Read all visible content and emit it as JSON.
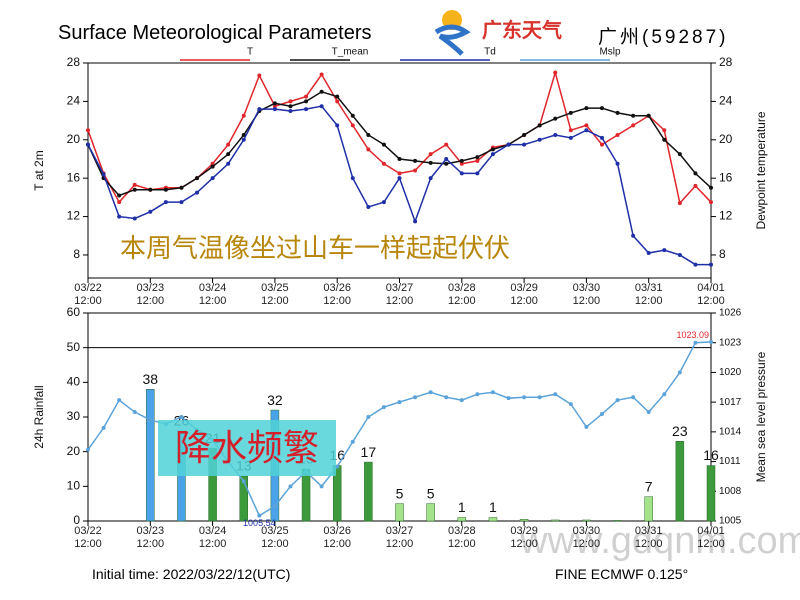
{
  "header": {
    "title": "Surface Meteorological Parameters",
    "logo_text": "广东天气",
    "station": "广州(59287)"
  },
  "chart_data": [
    {
      "type": "line",
      "x": [
        0,
        6,
        12,
        18,
        24,
        30,
        36,
        42,
        48,
        54,
        60,
        66,
        72,
        78,
        84,
        90,
        96,
        102,
        108,
        114,
        120,
        126,
        132,
        138,
        144,
        150,
        156,
        162,
        168,
        174,
        180,
        186,
        192,
        198,
        204,
        210,
        216,
        222,
        228,
        234,
        240
      ],
      "xlim": [
        0,
        240
      ],
      "xticks": [
        {
          "value": 0,
          "label": "03/22 12:00"
        },
        {
          "value": 24,
          "label": "03/23 12:00"
        },
        {
          "value": 48,
          "label": "03/24 12:00"
        },
        {
          "value": 72,
          "label": "03/25 12:00"
        },
        {
          "value": 96,
          "label": "03/26 12:00"
        },
        {
          "value": 120,
          "label": "03/27 12:00"
        },
        {
          "value": 144,
          "label": "03/28 12:00"
        },
        {
          "value": 168,
          "label": "03/29 12:00"
        },
        {
          "value": 192,
          "label": "03/30 12:00"
        },
        {
          "value": 216,
          "label": "03/31 12:00"
        },
        {
          "value": 240,
          "label": "04/01 12:00"
        }
      ],
      "y_label": "T at 2m",
      "ylim": [
        5.6,
        28
      ],
      "yticks": [
        8,
        12,
        16,
        20,
        24,
        28
      ],
      "y2_label": "Dewpoint temperature",
      "y2lim": [
        5.6,
        28
      ],
      "y2ticks": [
        8,
        12,
        16,
        20,
        24,
        28
      ],
      "series": [
        {
          "name": "T",
          "color": "#e0262b",
          "values": [
            21,
            16.5,
            13.5,
            15.3,
            14.8,
            15,
            15,
            16,
            17.5,
            19.5,
            22.5,
            26.7,
            23.5,
            24,
            24.5,
            26.8,
            24,
            21.5,
            19,
            17.5,
            16.5,
            16.8,
            18.5,
            19.5,
            17.5,
            17.8,
            19.2,
            19.5,
            20.5,
            21.5,
            27,
            21,
            21.5,
            19.5,
            20.5,
            21.5,
            22.5,
            21,
            13.4,
            15.2,
            13.5
          ]
        },
        {
          "name": "T_mean",
          "color": "#111111",
          "values": [
            19.5,
            16,
            14.2,
            14.8,
            14.8,
            14.8,
            15,
            16,
            17.2,
            18.5,
            20.5,
            23,
            23.8,
            23.5,
            24,
            25,
            24.5,
            22.5,
            20.5,
            19.5,
            18,
            17.8,
            17.6,
            17.5,
            17.8,
            18.2,
            19,
            19.5,
            20.5,
            21.5,
            22.2,
            22.8,
            23.3,
            23.3,
            22.8,
            22.5,
            22.5,
            20,
            18.5,
            16.5,
            15
          ]
        },
        {
          "name": "Td",
          "color": "#1f2fa8",
          "axis": "y2",
          "values": [
            19.5,
            16.4,
            12,
            11.8,
            12.5,
            13.5,
            13.5,
            14.5,
            16,
            17.5,
            20,
            23.2,
            23.2,
            23,
            23.2,
            23.5,
            21.5,
            16,
            13,
            13.5,
            16,
            11.5,
            16,
            18,
            16.5,
            16.5,
            18.5,
            19.5,
            19.5,
            20,
            20.5,
            20.2,
            21,
            20.2,
            17.5,
            10,
            8.2,
            8.5,
            8,
            7,
            7
          ]
        }
      ],
      "annotation": "本周气温像坐过山车一样起起伏伏"
    },
    {
      "type": "bar",
      "x": [
        24,
        36,
        48,
        60,
        72,
        84,
        96,
        108,
        120,
        132,
        144,
        156,
        168,
        180,
        192,
        204,
        216,
        228,
        240
      ],
      "values": [
        38,
        26,
        21,
        13,
        32,
        15,
        16,
        17,
        5,
        5,
        1,
        1,
        0.5,
        0.3,
        0.3,
        0.2,
        7,
        23,
        16
      ],
      "colors": [
        "#4aa3e8",
        "#4aa3e8",
        "#3c9a3c",
        "#3c9a3c",
        "#4aa3e8",
        "#3c9a3c",
        "#3c9a3c",
        "#3c9a3c",
        "#a4e38a",
        "#a4e38a",
        "#a4e38a",
        "#a4e38a",
        "#a4e38a",
        "#a4e38a",
        "#a4e38a",
        "#a4e38a",
        "#a4e38a",
        "#3c9a3c",
        "#3c9a3c"
      ],
      "xlim": [
        0,
        240
      ],
      "xticks": [
        {
          "value": 0,
          "label": "03/22 12:00"
        },
        {
          "value": 24,
          "label": "03/23 12:00"
        },
        {
          "value": 48,
          "label": "03/24 12:00"
        },
        {
          "value": 72,
          "label": "03/25 12:00"
        },
        {
          "value": 96,
          "label": "03/26 12:00"
        },
        {
          "value": 120,
          "label": "03/27 12:00"
        },
        {
          "value": 144,
          "label": "03/28 12:00"
        },
        {
          "value": 168,
          "label": "03/29 12:00"
        },
        {
          "value": 192,
          "label": "03/30 12:00"
        },
        {
          "value": 216,
          "label": "03/31 12:00"
        },
        {
          "value": 240,
          "label": "04/01 12:00"
        }
      ],
      "y_label": "24h Rainfall",
      "ylim": [
        0,
        60
      ],
      "yticks": [
        0,
        10,
        20,
        30,
        40,
        50,
        60
      ],
      "y2_label": "Mean sea level pressure",
      "y2lim": [
        1005,
        1026
      ],
      "y2ticks": [
        1005,
        1008,
        1011,
        1014,
        1017,
        1020,
        1023,
        1026
      ],
      "series": [
        {
          "name": "Mslp",
          "color": "#5ba3d9",
          "axis": "y2",
          "x": [
            0,
            6,
            12,
            18,
            24,
            30,
            36,
            42,
            48,
            54,
            60,
            66,
            72,
            78,
            84,
            90,
            96,
            102,
            108,
            114,
            120,
            126,
            132,
            138,
            144,
            150,
            156,
            162,
            168,
            174,
            180,
            186,
            192,
            198,
            204,
            210,
            216,
            222,
            228,
            234,
            240
          ],
          "values": [
            1012.2,
            1014.4,
            1017.2,
            1016,
            1015.2,
            1014.8,
            1015.5,
            1014.2,
            1013.2,
            1011,
            1009,
            1005.54,
            1006.5,
            1008.5,
            1010,
            1008.5,
            1010.5,
            1013,
            1015.5,
            1016.5,
            1017,
            1017.5,
            1018,
            1017.5,
            1017.2,
            1017.8,
            1018,
            1017.4,
            1017.5,
            1017.5,
            1017.8,
            1016.8,
            1014.5,
            1015.8,
            1017.2,
            1017.5,
            1016,
            1017.8,
            1020,
            1023,
            1023.09
          ]
        }
      ],
      "annotation": "降水频繁"
    }
  ],
  "footer": {
    "initial_time": "Initial time: 2022/03/22/12(UTC)",
    "model": "FINE ECMWF 0.125°",
    "watermark": "www.gdqnm.com"
  }
}
